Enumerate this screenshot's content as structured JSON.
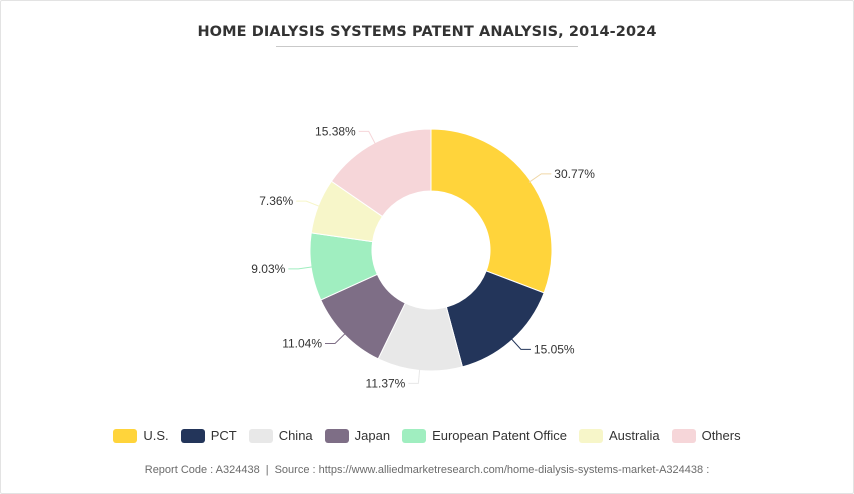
{
  "chart_data": {
    "type": "pie",
    "title": "HOME DIALYSIS SYSTEMS PATENT ANALYSIS, 2014-2024",
    "donut": true,
    "legend_position": "bottom",
    "categories": [
      "U.S.",
      "PCT",
      "China",
      "Japan",
      "European Patent Office",
      "Australia",
      "Others"
    ],
    "values": [
      30.77,
      15.05,
      11.37,
      11.04,
      9.03,
      7.36,
      15.38
    ],
    "value_labels": [
      "30.77%",
      "15.05%",
      "11.37%",
      "11.04%",
      "9.03%",
      "7.36%",
      "15.38%"
    ],
    "colors": [
      "#FFD43B",
      "#23355A",
      "#E8E8E8",
      "#7E6E86",
      "#A0EEC0",
      "#F7F6C9",
      "#F6D6D9"
    ],
    "leader_color": "#d9d9d9"
  },
  "footer": {
    "report_code": "Report Code : A324438",
    "separator": "|",
    "source": "Source : https://www.alliedmarketresearch.com/home-dialysis-systems-market-A324438 :"
  }
}
